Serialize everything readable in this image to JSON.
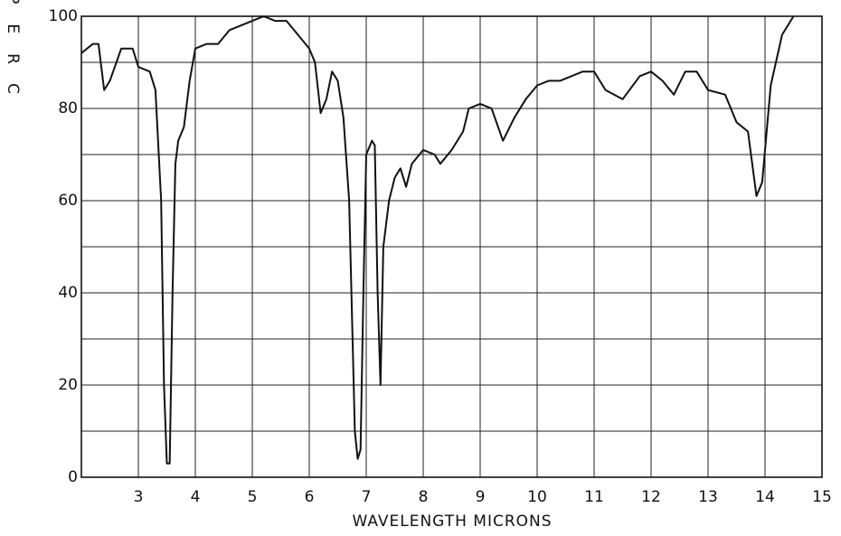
{
  "chart_data": {
    "type": "line",
    "y_label": "PERC",
    "x_label": "WAVELENGTH MICRONS",
    "xlim": [
      2,
      15
    ],
    "xticks": [
      3,
      4,
      5,
      6,
      7,
      8,
      9,
      10,
      11,
      12,
      13,
      14,
      15
    ],
    "ylim": [
      0,
      100
    ],
    "yticks": [
      0,
      20,
      40,
      60,
      80,
      100
    ],
    "minor_yticks": [
      10,
      30,
      50,
      70,
      90
    ],
    "grid": true,
    "series": [
      {
        "color": "#111111",
        "x": [
          2.0,
          2.2,
          2.3,
          2.4,
          2.5,
          2.7,
          2.9,
          3.0,
          3.2,
          3.3,
          3.4,
          3.45,
          3.5,
          3.55,
          3.6,
          3.65,
          3.7,
          3.8,
          3.9,
          4.0,
          4.2,
          4.4,
          4.6,
          4.8,
          5.0,
          5.2,
          5.4,
          5.6,
          5.8,
          6.0,
          6.1,
          6.2,
          6.3,
          6.4,
          6.5,
          6.6,
          6.7,
          6.8,
          6.85,
          6.9,
          6.95,
          7.0,
          7.1,
          7.15,
          7.2,
          7.25,
          7.3,
          7.4,
          7.5,
          7.6,
          7.7,
          7.8,
          8.0,
          8.2,
          8.3,
          8.5,
          8.7,
          8.8,
          9.0,
          9.2,
          9.4,
          9.6,
          9.8,
          10.0,
          10.2,
          10.4,
          10.6,
          10.8,
          11.0,
          11.2,
          11.5,
          11.8,
          12.0,
          12.2,
          12.4,
          12.6,
          12.8,
          13.0,
          13.3,
          13.5,
          13.7,
          13.85,
          13.95,
          14.1,
          14.3,
          14.5
        ],
        "values": [
          92,
          94,
          94,
          84,
          86,
          93,
          93,
          89,
          88,
          84,
          60,
          20,
          3,
          3,
          40,
          68,
          73,
          76,
          86,
          93,
          94,
          94,
          97,
          98,
          99,
          100,
          99,
          99,
          96,
          93,
          90,
          79,
          82,
          88,
          86,
          78,
          60,
          10,
          4,
          6,
          40,
          70,
          73,
          72,
          40,
          20,
          50,
          60,
          65,
          67,
          63,
          68,
          71,
          70,
          68,
          71,
          75,
          80,
          81,
          80,
          73,
          78,
          82,
          85,
          86,
          86,
          87,
          88,
          88,
          84,
          82,
          87,
          88,
          86,
          83,
          88,
          88,
          84,
          83,
          77,
          75,
          61,
          64,
          85,
          96,
          100
        ]
      }
    ]
  }
}
